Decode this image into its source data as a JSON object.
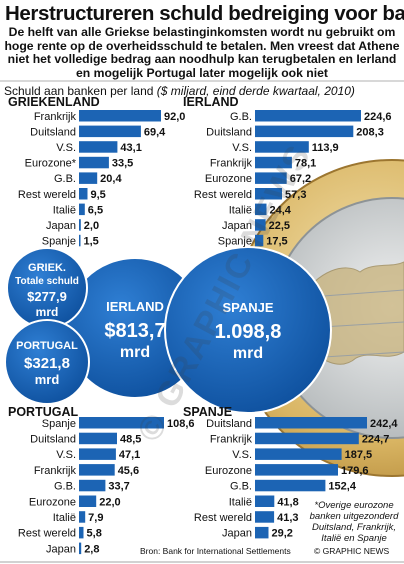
{
  "title": "Herstructureren schuld bedreiging voor banken",
  "subtitle": "De helft van alle Griekse belastinginkomsten wordt nu gebruikt om hoge rente op de overheidsschuld te betalen. Men vreest dat Athene niet het volledige bedrag aan noodhulp kan terugbetalen en Ierland en mogelijk Portugal later mogelijk ook niet",
  "source_row": {
    "main": "Schuld aan banken per land",
    "unit": "($ miljard, eind derde kwartaal, 2010)"
  },
  "footnote": "*Overige eurozone banken uitgezonderd Duitsland, Frankrijk, Italië en Spanje",
  "source": "Bron: Bank for International Settlements",
  "copyright": "© GRAPHIC NEWS",
  "watermark": "© GRAPHIC NEWS",
  "colors": {
    "bar": "#1c64b4",
    "circle": "#1863c1",
    "coin_gold": "#e0c07a",
    "coin_silver": "#cfd3d4"
  },
  "bubbles": [
    {
      "line1": "GRIEK.",
      "line2": "Totale schuld",
      "value": "$277,9",
      "unit": "mrd"
    },
    {
      "line1": "PORTUGAL",
      "value": "$321,8",
      "unit": "mrd"
    },
    {
      "line1": "IERLAND",
      "value": "$813,7",
      "unit": "mrd"
    },
    {
      "line1": "SPANJE",
      "value": "1.098,8",
      "unit": "mrd"
    }
  ],
  "chart_data": [
    {
      "type": "bar",
      "title": "GRIEKENLAND",
      "categories": [
        "Frankrijk",
        "Duitsland",
        "V.S.",
        "Eurozone*",
        "G.B.",
        "Rest wereld",
        "Italië",
        "Japan",
        "Spanje"
      ],
      "values": [
        92.0,
        69.4,
        43.1,
        33.5,
        20.4,
        9.5,
        6.5,
        2.0,
        1.5
      ],
      "value_labels": [
        "92,0",
        "69,4",
        "43,1",
        "33,5",
        "20,4",
        "9,5",
        "6,5",
        "2,0",
        "1,5"
      ]
    },
    {
      "type": "bar",
      "title": "IERLAND",
      "categories": [
        "G.B.",
        "Duitsland",
        "V.S.",
        "Frankrijk",
        "Eurozone",
        "Rest wereld",
        "Italië",
        "Japan",
        "Spanje"
      ],
      "values": [
        224.6,
        208.3,
        113.9,
        78.1,
        67.2,
        57.3,
        24.4,
        22.5,
        17.5
      ],
      "value_labels": [
        "224,6",
        "208,3",
        "113,9",
        "78,1",
        "67,2",
        "57,3",
        "24,4",
        "22,5",
        "17,5"
      ]
    },
    {
      "type": "bar",
      "title": "PORTUGAL",
      "categories": [
        "Spanje",
        "Duitsland",
        "V.S.",
        "Frankrijk",
        "G.B.",
        "Eurozone",
        "Italië",
        "Rest wereld",
        "Japan"
      ],
      "values": [
        108.6,
        48.5,
        47.1,
        45.6,
        33.7,
        22.0,
        7.9,
        5.8,
        2.8
      ],
      "value_labels": [
        "108,6",
        "48,5",
        "47,1",
        "45,6",
        "33,7",
        "22,0",
        "7,9",
        "5,8",
        "2,8"
      ]
    },
    {
      "type": "bar",
      "title": "SPANJE",
      "categories": [
        "Duitsland",
        "Frankrijk",
        "V.S.",
        "Eurozone",
        "G.B.",
        "Italië",
        "Rest wereld",
        "Japan"
      ],
      "values": [
        242.4,
        224.7,
        187.5,
        179.6,
        152.4,
        41.8,
        41.3,
        29.2
      ],
      "value_labels": [
        "242,4",
        "224,7",
        "187,5",
        "179,6",
        "152,4",
        "41,8",
        "41,3",
        "29,2"
      ]
    }
  ]
}
